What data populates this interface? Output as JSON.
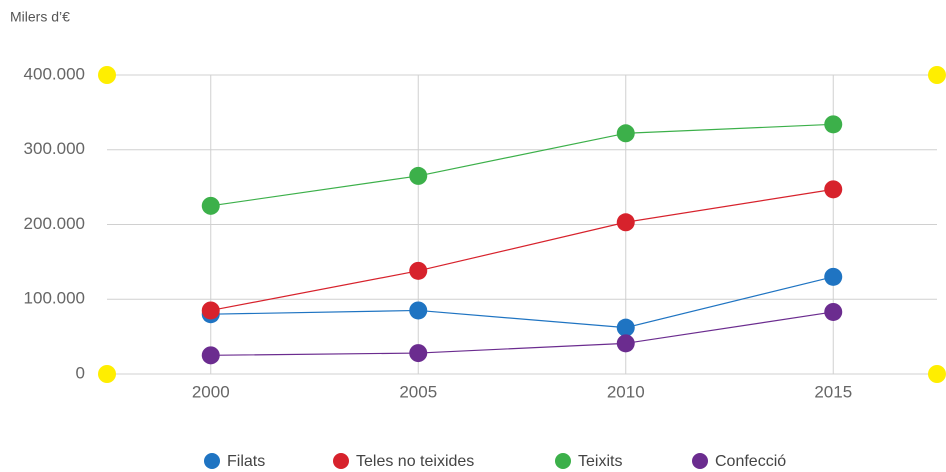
{
  "chart_data": {
    "type": "line",
    "y_label": "Milers d’€",
    "categories": [
      "2000",
      "2005",
      "2010",
      "2015"
    ],
    "series": [
      {
        "name": "Filats",
        "color": "#1f74c2",
        "values": [
          80000,
          85000,
          62000,
          130000
        ]
      },
      {
        "name": "Teles no teixides",
        "color": "#d7222c",
        "values": [
          85000,
          138000,
          203000,
          247000
        ]
      },
      {
        "name": "Teixits",
        "color": "#3cb04a",
        "values": [
          225000,
          265000,
          322000,
          334000
        ]
      },
      {
        "name": "Confecció",
        "color": "#6b2c8f",
        "values": [
          25000,
          28000,
          41000,
          83000
        ]
      }
    ],
    "ylim": [
      0,
      400000
    ],
    "yticks": [
      0,
      {
        "value": 100000,
        "label": "100.000"
      },
      {
        "value": 200000,
        "label": "200.000"
      },
      {
        "value": 300000,
        "label": "300.000"
      },
      {
        "value": 400000,
        "label": "400.000"
      }
    ],
    "grid": true,
    "legend": "bottom"
  }
}
